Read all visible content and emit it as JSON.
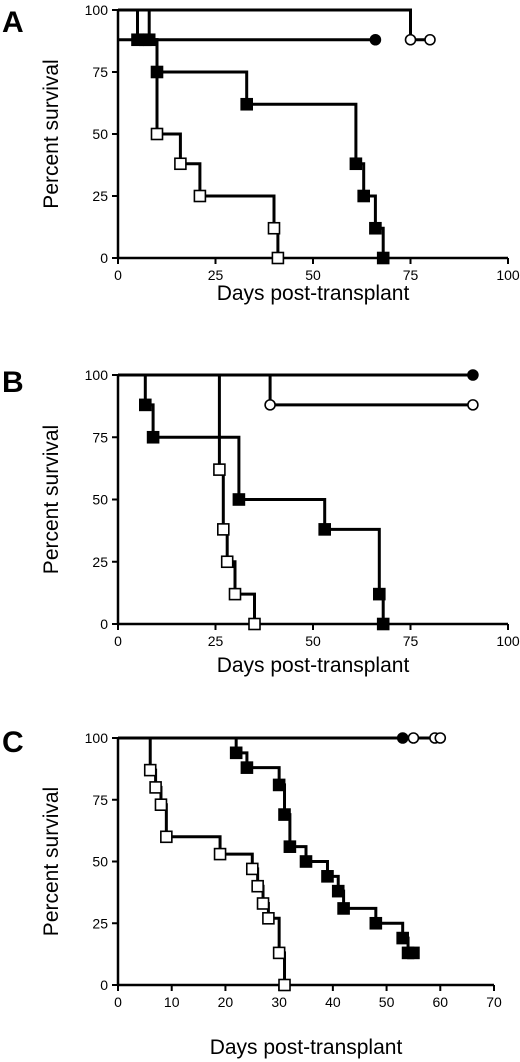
{
  "chart_data": [
    {
      "type": "line",
      "panel_label": "A",
      "xlabel": "Days post-transplant",
      "ylabel": "Percent survival",
      "xlim": [
        0,
        100
      ],
      "ylim": [
        0,
        100
      ],
      "xticks": [
        "0",
        "25",
        "50",
        "75",
        "100"
      ],
      "yticks": [
        "0",
        "25",
        "50",
        "75",
        "100"
      ],
      "grid": false,
      "series": [
        {
          "marker": "open-square",
          "start": 100,
          "steps": [
            [
              5,
              88
            ],
            [
              7,
              88
            ],
            [
              10,
              50
            ],
            [
              16,
              38
            ],
            [
              21,
              25
            ],
            [
              40,
              12
            ],
            [
              41,
              0
            ]
          ],
          "marked": [
            [
              7,
              88
            ],
            [
              10,
              50
            ],
            [
              16,
              38
            ],
            [
              21,
              25
            ],
            [
              40,
              12
            ],
            [
              41,
              0
            ]
          ]
        },
        {
          "marker": "filled-square",
          "start": 100,
          "steps": [
            [
              8,
              88
            ],
            [
              10,
              75
            ],
            [
              33,
              62
            ],
            [
              61,
              38
            ],
            [
              63,
              25
            ],
            [
              66,
              12
            ],
            [
              68,
              0
            ]
          ],
          "marked": [
            [
              5,
              88
            ],
            [
              8,
              88
            ],
            [
              10,
              75
            ],
            [
              33,
              62
            ],
            [
              61,
              38
            ],
            [
              63,
              25
            ],
            [
              66,
              12
            ],
            [
              68,
              0
            ]
          ]
        },
        {
          "marker": "open-circle",
          "start": 100,
          "steps": [
            [
              75,
              88
            ]
          ],
          "end": 80,
          "marked": [
            [
              75,
              88
            ],
            [
              80,
              88
            ]
          ]
        },
        {
          "marker": "filled-circle",
          "start": 88,
          "steps": [],
          "end": 66,
          "marked": [
            [
              66,
              88
            ]
          ]
        }
      ]
    },
    {
      "type": "line",
      "panel_label": "B",
      "xlabel": "Days post-transplant",
      "ylabel": "Percent survival",
      "xlim": [
        0,
        100
      ],
      "ylim": [
        0,
        100
      ],
      "xticks": [
        "0",
        "25",
        "50",
        "75",
        "100"
      ],
      "yticks": [
        "0",
        "25",
        "50",
        "75",
        "100"
      ],
      "grid": false,
      "series": [
        {
          "marker": "open-square",
          "start": 100,
          "steps": [
            [
              26,
              62
            ],
            [
              27,
              38
            ],
            [
              28,
              25
            ],
            [
              30,
              12
            ],
            [
              35,
              0
            ]
          ],
          "marked": [
            [
              26,
              62
            ],
            [
              27,
              38
            ],
            [
              28,
              25
            ],
            [
              30,
              12
            ],
            [
              35,
              0
            ]
          ]
        },
        {
          "marker": "filled-square",
          "start": 100,
          "steps": [
            [
              7,
              88
            ],
            [
              9,
              75
            ],
            [
              31,
              50
            ],
            [
              53,
              38
            ],
            [
              67,
              12
            ],
            [
              68,
              0
            ]
          ],
          "marked": [
            [
              7,
              88
            ],
            [
              9,
              75
            ],
            [
              31,
              50
            ],
            [
              53,
              38
            ],
            [
              67,
              12
            ],
            [
              68,
              0
            ]
          ]
        },
        {
          "marker": "open-circle",
          "start": 100,
          "steps": [
            [
              39,
              88
            ]
          ],
          "end": 91,
          "marked": [
            [
              39,
              88
            ],
            [
              91,
              88
            ]
          ]
        },
        {
          "marker": "filled-circle",
          "start": 100,
          "steps": [],
          "end": 91,
          "marked": [
            [
              91,
              100
            ]
          ]
        }
      ]
    },
    {
      "type": "line",
      "panel_label": "C",
      "xlabel": "Days post-transplant",
      "ylabel": "Percent survival",
      "xlim": [
        0,
        70
      ],
      "ylim": [
        0,
        100
      ],
      "xticks": [
        "0",
        "10",
        "20",
        "30",
        "40",
        "50",
        "60",
        "70"
      ],
      "yticks": [
        "0",
        "25",
        "50",
        "75",
        "100"
      ],
      "grid": false,
      "series": [
        {
          "marker": "open-square",
          "start": 100,
          "steps": [
            [
              6,
              87
            ],
            [
              7,
              80
            ],
            [
              8,
              73
            ],
            [
              9,
              60
            ],
            [
              19,
              53
            ],
            [
              25,
              47
            ],
            [
              26,
              40
            ],
            [
              27,
              33
            ],
            [
              28,
              27
            ],
            [
              30,
              13
            ],
            [
              31,
              0
            ]
          ],
          "marked": [
            [
              6,
              87
            ],
            [
              7,
              80
            ],
            [
              8,
              73
            ],
            [
              9,
              60
            ],
            [
              19,
              53
            ],
            [
              25,
              47
            ],
            [
              26,
              40
            ],
            [
              27,
              33
            ],
            [
              28,
              27
            ],
            [
              30,
              13
            ],
            [
              31,
              0
            ]
          ]
        },
        {
          "marker": "filled-square",
          "start": 100,
          "steps": [
            [
              22,
              94
            ],
            [
              24,
              88
            ],
            [
              30,
              81
            ],
            [
              31,
              69
            ],
            [
              32,
              56
            ],
            [
              35,
              50
            ],
            [
              39,
              44
            ],
            [
              41,
              38
            ],
            [
              42,
              31
            ],
            [
              48,
              25
            ],
            [
              53,
              19
            ],
            [
              54,
              13
            ]
          ],
          "end": 55,
          "marked": [
            [
              22,
              94
            ],
            [
              24,
              88
            ],
            [
              30,
              81
            ],
            [
              31,
              69
            ],
            [
              32,
              56
            ],
            [
              35,
              50
            ],
            [
              39,
              44
            ],
            [
              41,
              38
            ],
            [
              42,
              31
            ],
            [
              48,
              25
            ],
            [
              53,
              19
            ],
            [
              54,
              13
            ],
            [
              55,
              13
            ]
          ]
        },
        {
          "marker": "open-circle",
          "start": 100,
          "steps": [],
          "end": 60,
          "marked": [
            [
              55,
              100
            ],
            [
              59,
              100
            ],
            [
              60,
              100
            ]
          ]
        },
        {
          "marker": "filled-circle",
          "start": 100,
          "steps": [],
          "end": 53,
          "marked": [
            [
              53,
              100
            ]
          ]
        }
      ]
    }
  ]
}
